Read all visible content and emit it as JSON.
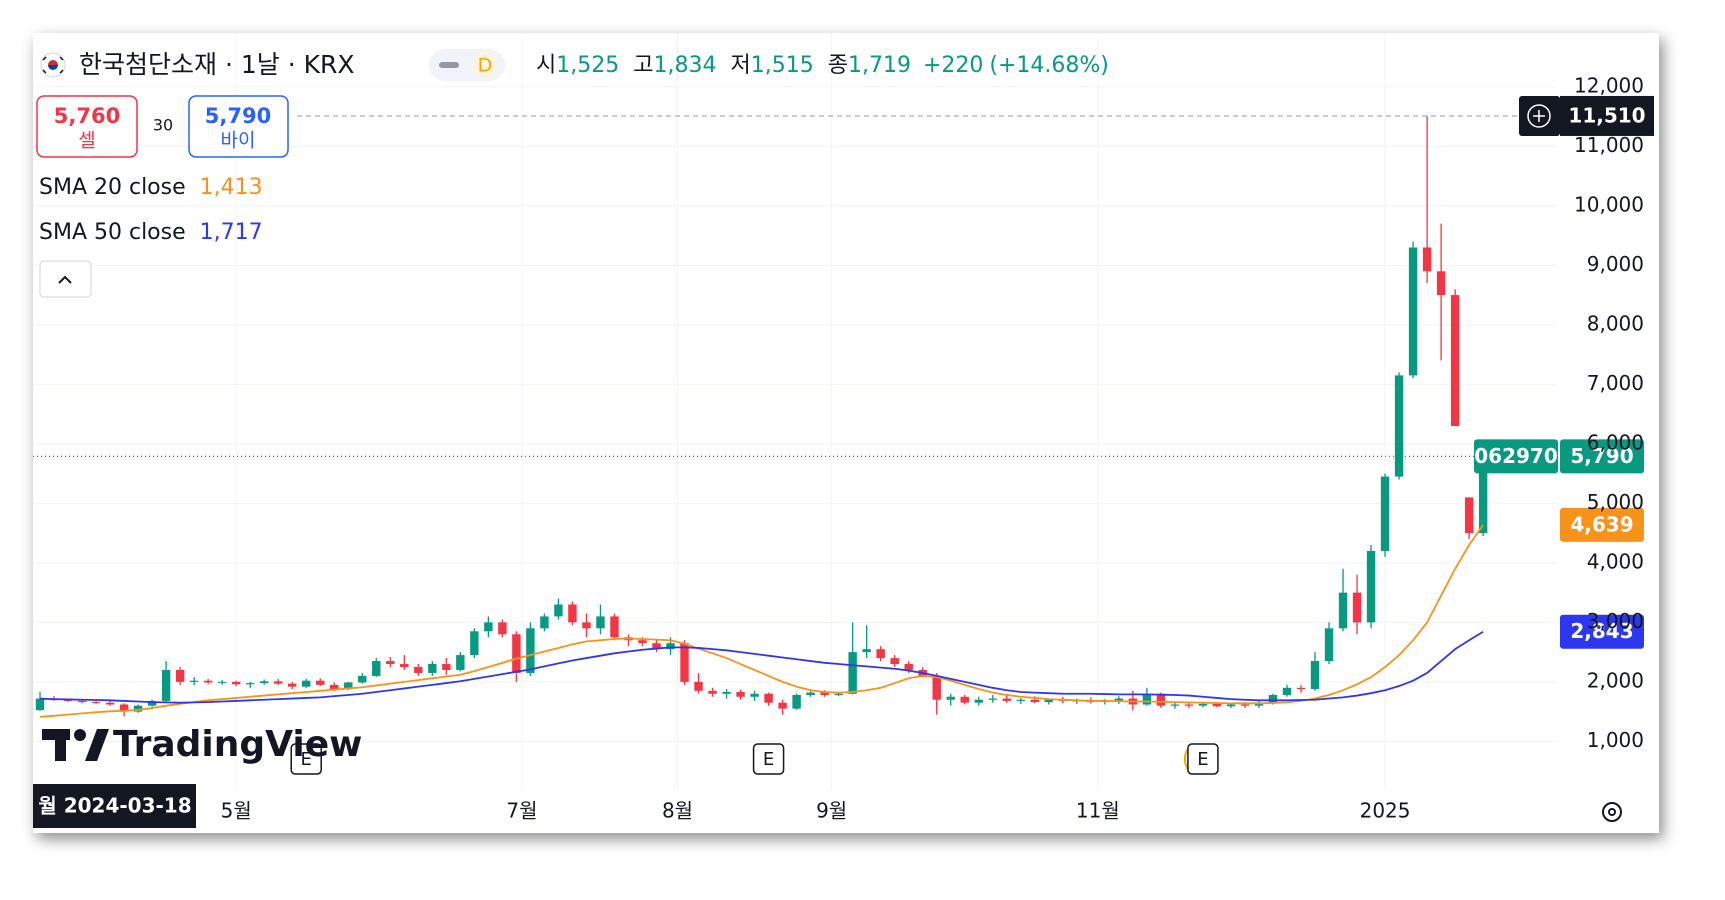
{
  "chart_data": {
    "type": "candlestick",
    "symbol_title": "한국첨단소재 · 1날 · KRX",
    "interval_badge": "D",
    "ohlc_legend": {
      "labels": [
        "시",
        "고",
        "저",
        "종"
      ],
      "values": [
        {
          "value": 1525,
          "label": "1,525"
        },
        {
          "value": 1834,
          "label": "1,834"
        },
        {
          "value": 1515,
          "label": "1,515"
        },
        {
          "value": 1719,
          "label": "1,719"
        }
      ],
      "change": {
        "value": 220,
        "label": "+220"
      },
      "change_pct": {
        "value": 14.68,
        "label": "(+14.68%)"
      }
    },
    "sell": {
      "price": {
        "value": 5760,
        "label": "5,760"
      },
      "text": "셀"
    },
    "buy": {
      "price": {
        "value": 5790,
        "label": "5,790"
      },
      "text": "바이"
    },
    "spread": 30,
    "up_color": "#089981",
    "down_color": "#f23645",
    "grid": true,
    "xlim": [
      -0.5,
      108.2
    ],
    "ylim": [
      183,
      12904
    ],
    "xticks": [
      {
        "value": 14,
        "label": "5월"
      },
      {
        "value": 34.4,
        "label": "7월"
      },
      {
        "value": 45.5,
        "label": "8월"
      },
      {
        "value": 56.5,
        "label": "9월"
      },
      {
        "value": 75.5,
        "label": "11월"
      },
      {
        "value": 96,
        "label": "2025"
      }
    ],
    "yticks": [
      {
        "value": 1000,
        "label": "1,000"
      },
      {
        "value": 2000,
        "label": "2,000"
      },
      {
        "value": 3000,
        "label": "3,000"
      },
      {
        "value": 4000,
        "label": "4,000"
      },
      {
        "value": 5000,
        "label": "5,000"
      },
      {
        "value": 6000,
        "label": "6,000"
      },
      {
        "value": 7000,
        "label": "7,000"
      },
      {
        "value": 8000,
        "label": "8,000"
      },
      {
        "value": 9000,
        "label": "9,000"
      },
      {
        "value": 10000,
        "label": "10,000"
      },
      {
        "value": 11000,
        "label": "11,000"
      },
      {
        "value": 12000,
        "label": "12,000"
      }
    ],
    "x": [
      0,
      1,
      2,
      3,
      4,
      5,
      6,
      7,
      8,
      9,
      10,
      11,
      12,
      13,
      14,
      15,
      16,
      17,
      18,
      19,
      20,
      21,
      22,
      23,
      24,
      25,
      26,
      27,
      28,
      29,
      30,
      31,
      32,
      33,
      34,
      35,
      36,
      37,
      38,
      39,
      40,
      41,
      42,
      43,
      44,
      45,
      46,
      47,
      48,
      49,
      50,
      51,
      52,
      53,
      54,
      55,
      56,
      57,
      58,
      59,
      60,
      61,
      62,
      63,
      64,
      65,
      66,
      67,
      68,
      69,
      70,
      71,
      72,
      73,
      74,
      75,
      76,
      77,
      78,
      79,
      80,
      81,
      82,
      83,
      84,
      85,
      86,
      87,
      88,
      89,
      90,
      91,
      92,
      93,
      94,
      95,
      96,
      97,
      98,
      99,
      100,
      101,
      102,
      103
    ],
    "ohlc": [
      [
        1525,
        1834,
        1515,
        1719
      ],
      [
        1710,
        1760,
        1680,
        1700
      ],
      [
        1700,
        1720,
        1660,
        1680
      ],
      [
        1680,
        1700,
        1640,
        1660
      ],
      [
        1660,
        1700,
        1630,
        1650
      ],
      [
        1650,
        1680,
        1600,
        1620
      ],
      [
        1620,
        1640,
        1420,
        1500
      ],
      [
        1500,
        1620,
        1480,
        1600
      ],
      [
        1600,
        1700,
        1580,
        1680
      ],
      [
        1680,
        2350,
        1670,
        2200
      ],
      [
        2200,
        2250,
        1950,
        2000
      ],
      [
        2000,
        2080,
        1940,
        2020
      ],
      [
        2020,
        2050,
        1960,
        1990
      ],
      [
        1990,
        2030,
        1950,
        2000
      ],
      [
        2000,
        2020,
        1930,
        1960
      ],
      [
        1960,
        2000,
        1900,
        1980
      ],
      [
        1980,
        2040,
        1950,
        2010
      ],
      [
        2010,
        2050,
        1950,
        1970
      ],
      [
        1970,
        2000,
        1880,
        1920
      ],
      [
        1920,
        2050,
        1900,
        2020
      ],
      [
        2020,
        2060,
        1930,
        1950
      ],
      [
        1950,
        1990,
        1850,
        1880
      ],
      [
        1880,
        2000,
        1860,
        1990
      ],
      [
        1990,
        2150,
        1970,
        2100
      ],
      [
        2100,
        2400,
        2080,
        2350
      ],
      [
        2350,
        2420,
        2250,
        2300
      ],
      [
        2300,
        2450,
        2200,
        2250
      ],
      [
        2250,
        2300,
        2100,
        2150
      ],
      [
        2150,
        2350,
        2100,
        2300
      ],
      [
        2300,
        2400,
        2120,
        2200
      ],
      [
        2200,
        2500,
        2180,
        2450
      ],
      [
        2450,
        2900,
        2400,
        2850
      ],
      [
        2850,
        3100,
        2750,
        3000
      ],
      [
        3000,
        3050,
        2750,
        2800
      ],
      [
        2800,
        2850,
        2000,
        2150
      ],
      [
        2150,
        3000,
        2100,
        2900
      ],
      [
        2900,
        3150,
        2850,
        3100
      ],
      [
        3100,
        3400,
        3050,
        3300
      ],
      [
        3300,
        3350,
        2950,
        3000
      ],
      [
        3000,
        3150,
        2750,
        2900
      ],
      [
        2900,
        3300,
        2800,
        3100
      ],
      [
        3100,
        3150,
        2700,
        2750
      ],
      [
        2750,
        2800,
        2600,
        2700
      ],
      [
        2700,
        2750,
        2600,
        2650
      ],
      [
        2650,
        2700,
        2500,
        2550
      ],
      [
        2550,
        2750,
        2450,
        2650
      ],
      [
        2650,
        2700,
        1950,
        2000
      ],
      [
        2000,
        2150,
        1800,
        1850
      ],
      [
        1850,
        1900,
        1750,
        1800
      ],
      [
        1800,
        1880,
        1720,
        1830
      ],
      [
        1830,
        1870,
        1700,
        1750
      ],
      [
        1750,
        1850,
        1680,
        1800
      ],
      [
        1800,
        1820,
        1600,
        1650
      ],
      [
        1650,
        1700,
        1450,
        1550
      ],
      [
        1550,
        1800,
        1530,
        1780
      ],
      [
        1780,
        1850,
        1750,
        1820
      ],
      [
        1820,
        1860,
        1750,
        1780
      ],
      [
        1780,
        1830,
        1760,
        1800
      ],
      [
        1800,
        3000,
        1790,
        2500
      ],
      [
        2500,
        2950,
        2400,
        2550
      ],
      [
        2550,
        2600,
        2350,
        2400
      ],
      [
        2400,
        2450,
        2250,
        2300
      ],
      [
        2300,
        2350,
        2150,
        2200
      ],
      [
        2200,
        2250,
        2080,
        2100
      ],
      [
        2100,
        2150,
        1450,
        1700
      ],
      [
        1700,
        1800,
        1600,
        1750
      ],
      [
        1750,
        1780,
        1620,
        1650
      ],
      [
        1650,
        1750,
        1600,
        1700
      ],
      [
        1700,
        1780,
        1650,
        1720
      ],
      [
        1720,
        1800,
        1650,
        1680
      ],
      [
        1680,
        1730,
        1630,
        1700
      ],
      [
        1700,
        1760,
        1640,
        1660
      ],
      [
        1660,
        1720,
        1620,
        1700
      ],
      [
        1700,
        1750,
        1640,
        1680
      ],
      [
        1680,
        1720,
        1630,
        1690
      ],
      [
        1690,
        1740,
        1640,
        1660
      ],
      [
        1660,
        1710,
        1620,
        1680
      ],
      [
        1680,
        1760,
        1630,
        1720
      ],
      [
        1720,
        1850,
        1520,
        1620
      ],
      [
        1620,
        1900,
        1600,
        1800
      ],
      [
        1800,
        1820,
        1560,
        1600
      ],
      [
        1600,
        1660,
        1550,
        1620
      ],
      [
        1620,
        1650,
        1560,
        1600
      ],
      [
        1600,
        1660,
        1570,
        1630
      ],
      [
        1630,
        1660,
        1570,
        1590
      ],
      [
        1590,
        1640,
        1560,
        1620
      ],
      [
        1620,
        1660,
        1560,
        1600
      ],
      [
        1600,
        1680,
        1560,
        1650
      ],
      [
        1650,
        1800,
        1620,
        1780
      ],
      [
        1780,
        1950,
        1750,
        1900
      ],
      [
        1900,
        1950,
        1820,
        1880
      ],
      [
        1880,
        2500,
        1850,
        2350
      ],
      [
        2350,
        3000,
        2300,
        2900
      ],
      [
        2900,
        3900,
        2850,
        3500
      ],
      [
        3500,
        3800,
        2800,
        3000
      ],
      [
        3000,
        4300,
        2900,
        4200
      ],
      [
        4200,
        5500,
        4100,
        5450
      ],
      [
        5450,
        7200,
        5400,
        7150
      ],
      [
        7150,
        9400,
        7100,
        9300
      ],
      [
        9300,
        11510,
        8700,
        8900
      ],
      [
        8900,
        9700,
        7400,
        8500
      ],
      [
        8500,
        8600,
        6300,
        6300
      ],
      [
        5100,
        5100,
        4400,
        4500
      ],
      [
        4500,
        6000,
        4450,
        5790
      ]
    ],
    "series": [
      {
        "name": "SMA 20 close",
        "color": "#f7931a",
        "legend_value": {
          "value": 1413,
          "label": "1,413"
        },
        "last_value_label": "4,639",
        "values": [
          1413,
          1430,
          1450,
          1470,
          1490,
          1505,
          1515,
          1530,
          1560,
          1600,
          1630,
          1660,
          1690,
          1710,
          1730,
          1750,
          1770,
          1790,
          1810,
          1830,
          1850,
          1870,
          1890,
          1910,
          1940,
          1970,
          2000,
          2030,
          2060,
          2090,
          2120,
          2180,
          2250,
          2320,
          2390,
          2450,
          2510,
          2570,
          2630,
          2680,
          2700,
          2720,
          2730,
          2720,
          2710,
          2700,
          2640,
          2560,
          2480,
          2400,
          2300,
          2200,
          2100,
          2000,
          1920,
          1860,
          1830,
          1820,
          1830,
          1860,
          1900,
          1980,
          2060,
          2100,
          2080,
          2020,
          1950,
          1880,
          1820,
          1780,
          1750,
          1730,
          1710,
          1700,
          1690,
          1680,
          1680,
          1675,
          1670,
          1670,
          1665,
          1660,
          1655,
          1650,
          1645,
          1640,
          1640,
          1640,
          1645,
          1655,
          1680,
          1720,
          1780,
          1860,
          1960,
          2080,
          2250,
          2450,
          2700,
          3000,
          3450,
          3900,
          4300,
          4639
        ]
      },
      {
        "name": "SMA 50 close",
        "color": "#2e37f0",
        "legend_value": {
          "value": 1717,
          "label": "1,717"
        },
        "last_value_label": "2,843",
        "values": [
          1717,
          1710,
          1705,
          1700,
          1695,
          1690,
          1680,
          1670,
          1660,
          1655,
          1650,
          1655,
          1660,
          1670,
          1680,
          1690,
          1700,
          1710,
          1720,
          1730,
          1740,
          1760,
          1780,
          1800,
          1830,
          1860,
          1890,
          1920,
          1950,
          1980,
          2010,
          2050,
          2090,
          2130,
          2170,
          2210,
          2260,
          2310,
          2360,
          2400,
          2440,
          2480,
          2510,
          2540,
          2560,
          2580,
          2580,
          2570,
          2550,
          2530,
          2500,
          2470,
          2440,
          2410,
          2380,
          2350,
          2320,
          2300,
          2280,
          2260,
          2240,
          2220,
          2190,
          2150,
          2100,
          2050,
          2000,
          1950,
          1900,
          1860,
          1830,
          1820,
          1810,
          1800,
          1800,
          1800,
          1795,
          1790,
          1790,
          1790,
          1785,
          1780,
          1770,
          1750,
          1730,
          1710,
          1700,
          1690,
          1690,
          1690,
          1695,
          1700,
          1720,
          1740,
          1770,
          1810,
          1860,
          1930,
          2020,
          2150,
          2350,
          2550,
          2700,
          2843
        ]
      }
    ],
    "crosshair": {
      "price": {
        "value": 11510,
        "label": "11,510"
      },
      "date": "월 2024-03-18"
    },
    "current_price": {
      "symbol_code": "062970",
      "price": {
        "value": 5790,
        "label": "5,790"
      }
    },
    "events": [
      {
        "x": 19,
        "label": "E"
      },
      {
        "x": 52,
        "label": "E"
      },
      {
        "x": 83,
        "label": "E"
      }
    ],
    "branding": "TradingView"
  }
}
